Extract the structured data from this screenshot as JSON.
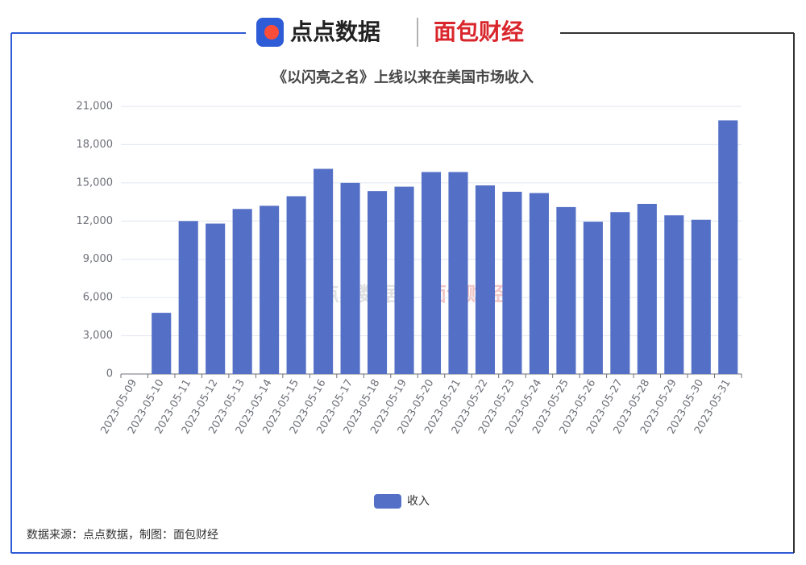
{
  "header": {
    "brand_left": "点点数据",
    "brand_right": "面包财经"
  },
  "chart_data": {
    "type": "bar",
    "title": "《以闪亮之名》上线以来在美国市场收入",
    "categories": [
      "2023-05-09",
      "2023-05-10",
      "2023-05-11",
      "2023-05-12",
      "2023-05-13",
      "2023-05-14",
      "2023-05-15",
      "2023-05-16",
      "2023-05-17",
      "2023-05-18",
      "2023-05-19",
      "2023-05-20",
      "2023-05-21",
      "2023-05-22",
      "2023-05-23",
      "2023-05-24",
      "2023-05-25",
      "2023-05-26",
      "2023-05-27",
      "2023-05-28",
      "2023-05-29",
      "2023-05-30",
      "2023-05-31"
    ],
    "series": [
      {
        "name": "收入",
        "color": "#5470c6",
        "values": [
          0,
          4800,
          12000,
          11800,
          12950,
          13200,
          13950,
          16100,
          15000,
          14350,
          14700,
          15850,
          15850,
          14800,
          14300,
          14200,
          13100,
          11950,
          12700,
          13350,
          12450,
          12100,
          19900
        ]
      }
    ],
    "ylim": [
      0,
      21000
    ],
    "yticks": [
      0,
      {
        "value": 3000,
        "label": "3,000"
      },
      {
        "value": 6000,
        "label": "6,000"
      },
      {
        "value": 9000,
        "label": "9,000"
      },
      {
        "value": 12000,
        "label": "12,000"
      },
      {
        "value": 15000,
        "label": "15,000"
      },
      {
        "value": 18000,
        "label": "18,000"
      },
      {
        "value": 21000,
        "label": "21,000"
      }
    ],
    "grid": true,
    "legend": "bottom"
  },
  "footer": {
    "source": "数据来源：点点数据，制图：面包财经"
  }
}
